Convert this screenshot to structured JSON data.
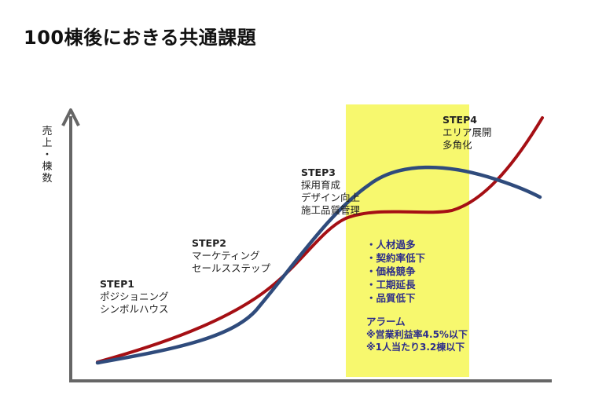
{
  "title": "100棟後におきる共通課題",
  "y_axis_label": [
    "売",
    "上",
    "・",
    "棟",
    "数"
  ],
  "colors": {
    "red_line": "#a50f14",
    "blue_line": "#2f4b7c",
    "highlight": "#f7f86e",
    "axis": "#666666",
    "issue_text": "#2d2d8a"
  },
  "steps": [
    {
      "heading": "STEP1",
      "lines": [
        "ポジショニング",
        "シンボルハウス"
      ]
    },
    {
      "heading": "STEP2",
      "lines": [
        "マーケティング",
        "セールスステップ"
      ]
    },
    {
      "heading": "STEP3",
      "lines": [
        "採用育成",
        "デザイン向上",
        "施工品質管理"
      ]
    },
    {
      "heading": "STEP4",
      "lines": [
        "エリア展開",
        "多角化"
      ]
    }
  ],
  "issues": [
    "・人材過多",
    "・契約率低下",
    "・価格競争",
    "・工期延長",
    "・品質低下"
  ],
  "alarm": {
    "heading": "アラーム",
    "lines": [
      "※営業利益率4.5%以下",
      "※1人当たり3.2棟以下"
    ]
  },
  "curves": {
    "red": "rising line that flattens in the highlighted zone then rises sharply",
    "blue": "S-curve peaking in the highlighted zone then declining"
  }
}
